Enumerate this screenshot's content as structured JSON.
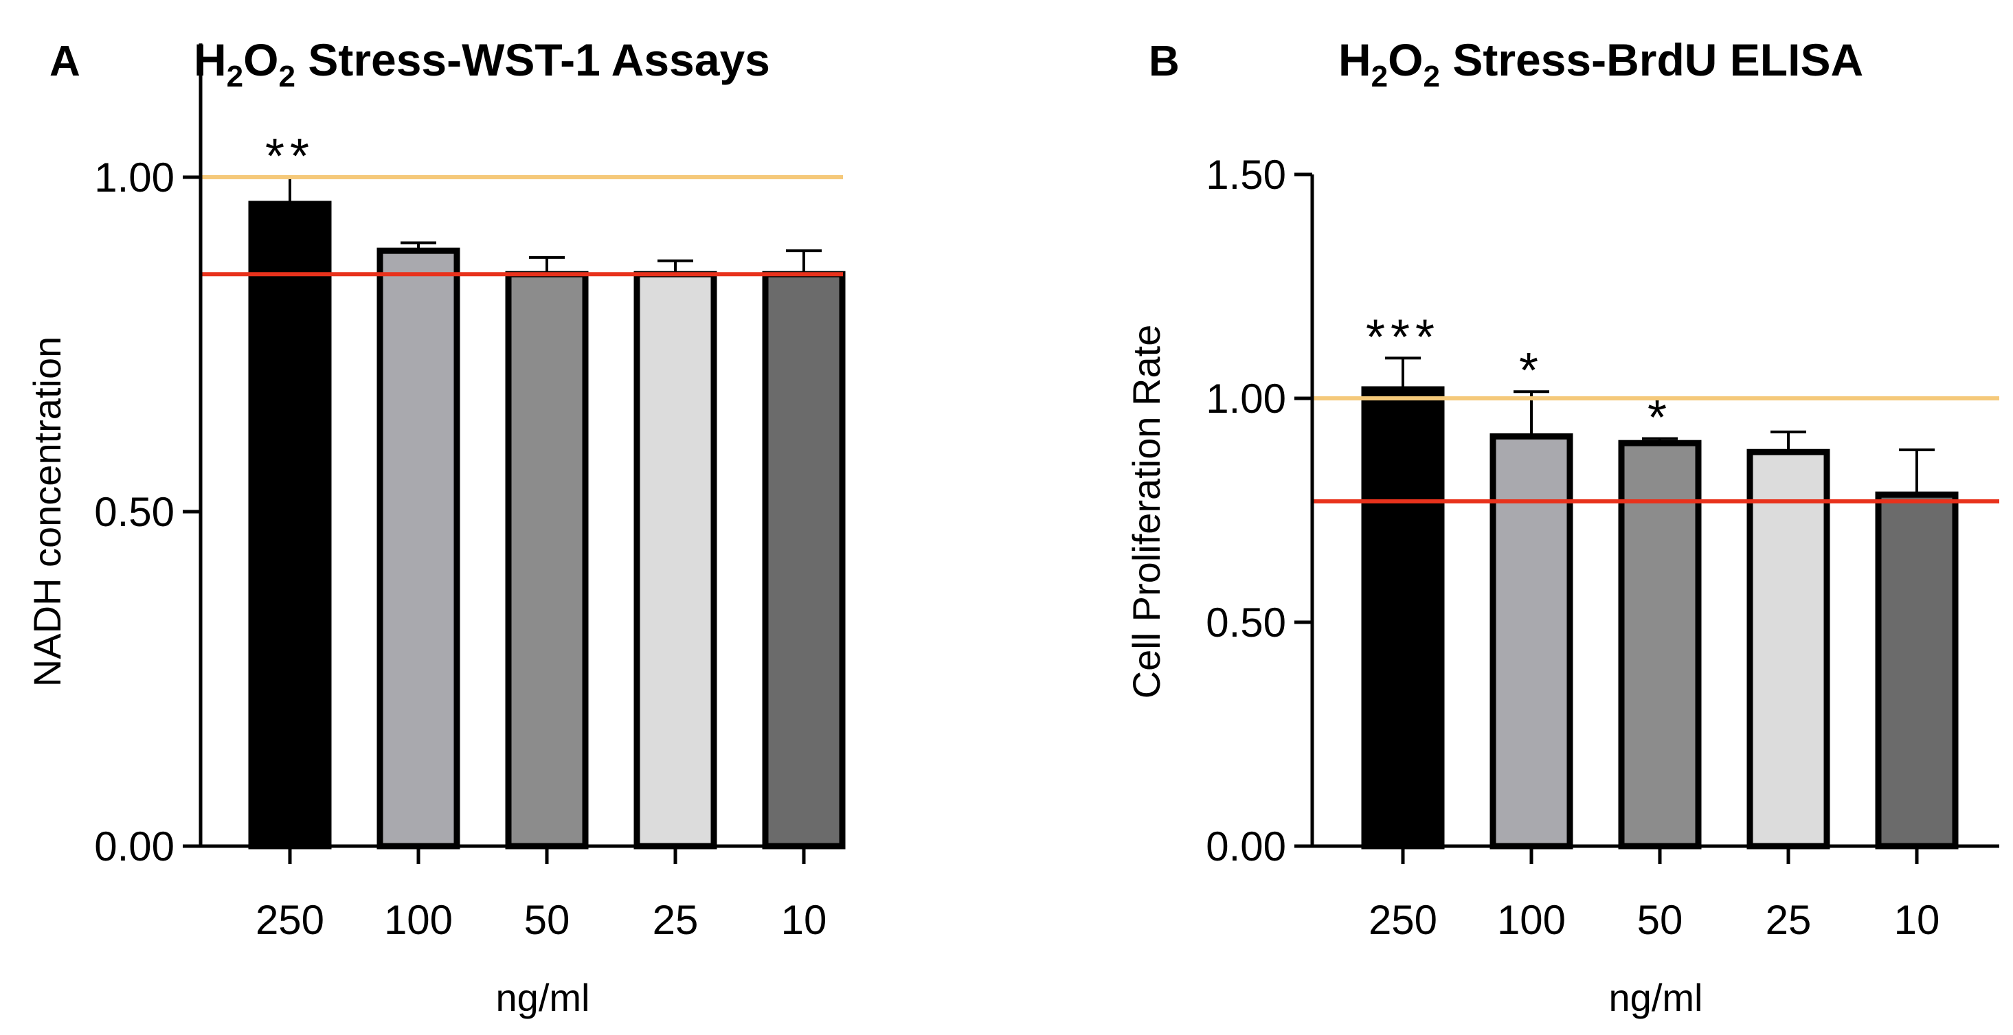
{
  "chart_data": [
    {
      "panel": "A",
      "type": "bar",
      "title_parts": [
        "H",
        "2",
        "O",
        "2",
        " Stress-WST-1 Assays"
      ],
      "xlabel": "ng/ml",
      "ylabel": "NADH concentration",
      "categories": [
        "250",
        "100",
        "50",
        "25",
        "10"
      ],
      "values": [
        0.96,
        0.89,
        0.855,
        0.855,
        0.855
      ],
      "errors": [
        0.04,
        0.012,
        0.025,
        0.02,
        0.035
      ],
      "significance": [
        "**",
        "",
        "",
        "",
        ""
      ],
      "bar_colors": [
        "#000000",
        "#a9a9ae",
        "#8c8c8c",
        "#dcdcdc",
        "#6b6b6b"
      ],
      "reference_lines": [
        {
          "name": "upper",
          "value": 1.0,
          "color": "#f5c97a"
        },
        {
          "name": "lower",
          "value": 0.855,
          "color": "#e8321c"
        }
      ],
      "ylim": [
        0,
        1.2
      ],
      "yticks": [
        0,
        0.5,
        1.0
      ],
      "ytick_labels": [
        "0.00",
        "0.50",
        "1.00"
      ]
    },
    {
      "panel": "B",
      "type": "bar",
      "title_parts": [
        "H",
        "2",
        "O",
        "2",
        " Stress-BrdU ELISA"
      ],
      "xlabel": "ng/ml",
      "ylabel": "Cell Proliferation Rate",
      "categories": [
        "250",
        "100",
        "50",
        "25",
        "10"
      ],
      "values": [
        1.02,
        0.915,
        0.9,
        0.88,
        0.785
      ],
      "errors": [
        0.07,
        0.1,
        0.01,
        0.045,
        0.1
      ],
      "significance": [
        "***",
        "*",
        "*",
        "",
        ""
      ],
      "bar_colors": [
        "#000000",
        "#a9a9ae",
        "#8c8c8c",
        "#dcdcdc",
        "#6b6b6b"
      ],
      "reference_lines": [
        {
          "name": "upper",
          "value": 1.0,
          "color": "#f5c97a"
        },
        {
          "name": "lower",
          "value": 0.77,
          "color": "#e8321c"
        }
      ],
      "ylim": [
        0,
        1.5
      ],
      "yticks": [
        0,
        0.5,
        1.0,
        1.5
      ],
      "ytick_labels": [
        "0.00",
        "0.50",
        "1.00",
        "1.50"
      ]
    }
  ]
}
